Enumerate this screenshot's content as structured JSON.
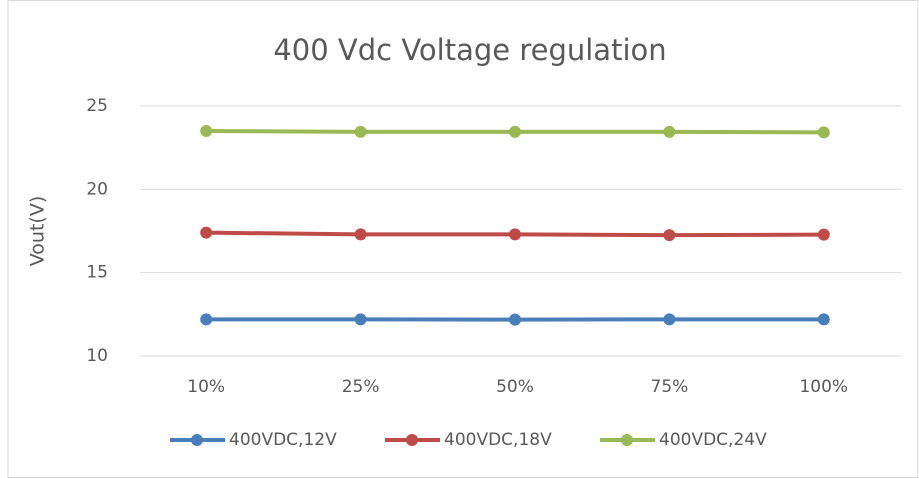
{
  "chart_data": {
    "type": "line",
    "title": "400 Vdc Voltage regulation",
    "y_label": "Vout(V)",
    "categories": [
      "10%",
      "25%",
      "50%",
      "75%",
      "100%"
    ],
    "series": [
      {
        "name": "400VDC,12V",
        "color": "#4a7ebb",
        "values": [
          12.2,
          12.2,
          12.18,
          12.2,
          12.2
        ]
      },
      {
        "name": "400VDC,18V",
        "color": "#be4b48",
        "values": [
          17.4,
          17.3,
          17.3,
          17.25,
          17.28
        ]
      },
      {
        "name": "400VDC,24V",
        "color": "#98b954",
        "values": [
          23.5,
          23.45,
          23.45,
          23.45,
          23.42
        ]
      }
    ],
    "ylim": [
      10,
      25
    ],
    "yticks": [
      10,
      15,
      20,
      25
    ],
    "grid": true,
    "legend": "bottom"
  }
}
